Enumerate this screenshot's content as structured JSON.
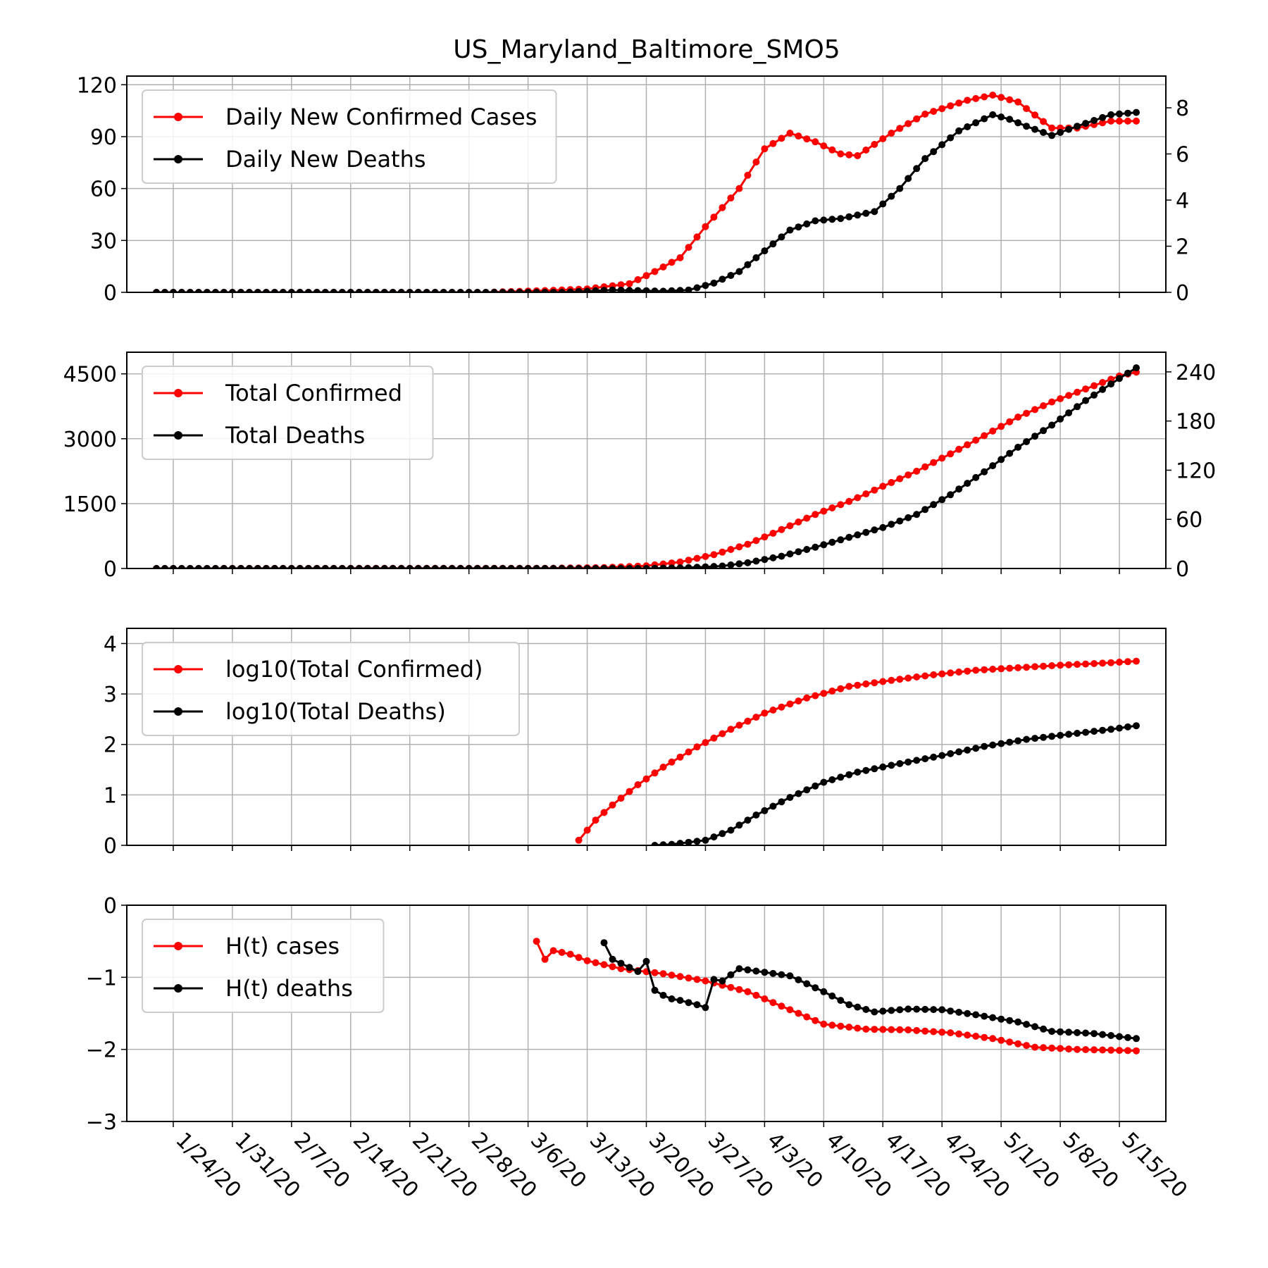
{
  "title": "US_Maryland_Baltimore_SMO5",
  "x_tick_labels": [
    "1/24/20",
    "1/31/20",
    "2/7/20",
    "2/14/20",
    "2/21/20",
    "2/28/20",
    "3/6/20",
    "3/13/20",
    "3/20/20",
    "3/27/20",
    "4/3/20",
    "4/10/20",
    "4/17/20",
    "4/24/20",
    "5/1/20",
    "5/8/20",
    "5/15/20"
  ],
  "x_tick_dates": [
    "2020-01-24",
    "2020-01-31",
    "2020-02-07",
    "2020-02-14",
    "2020-02-21",
    "2020-02-28",
    "2020-03-06",
    "2020-03-13",
    "2020-03-20",
    "2020-03-27",
    "2020-04-03",
    "2020-04-10",
    "2020-04-17",
    "2020-04-24",
    "2020-05-01",
    "2020-05-08",
    "2020-05-15"
  ],
  "colors": {
    "cases": "#ff0000",
    "deaths": "#000000",
    "grid": "#b0b0b0"
  },
  "chart_data": [
    {
      "type": "line",
      "x_start": "2020-01-22",
      "x_end": "2020-05-17",
      "ylim": [
        0,
        125
      ],
      "yticks": [
        0,
        30,
        60,
        90,
        120
      ],
      "ylim_right": [
        0,
        9.375
      ],
      "yticks_right": [
        0,
        2,
        4,
        6,
        8
      ],
      "grid": true,
      "legend_position": "top-left",
      "series": [
        {
          "name": "Daily New Confirmed Cases",
          "color": "#ff0000",
          "axis": "left",
          "points": [
            [
              "2020-01-22",
              0
            ],
            [
              "2020-03-01",
              0
            ],
            [
              "2020-03-08",
              1
            ],
            [
              "2020-03-13",
              2
            ],
            [
              "2020-03-18",
              5
            ],
            [
              "2020-03-21",
              12
            ],
            [
              "2020-03-24",
              20
            ],
            [
              "2020-03-27",
              38
            ],
            [
              "2020-03-31",
              60
            ],
            [
              "2020-04-03",
              83
            ],
            [
              "2020-04-06",
              92
            ],
            [
              "2020-04-09",
              87
            ],
            [
              "2020-04-12",
              80
            ],
            [
              "2020-04-14",
              79
            ],
            [
              "2020-04-18",
              92
            ],
            [
              "2020-04-22",
              103
            ],
            [
              "2020-04-27",
              111
            ],
            [
              "2020-04-30",
              114
            ],
            [
              "2020-05-03",
              110
            ],
            [
              "2020-05-07",
              95
            ],
            [
              "2020-05-10",
              95
            ],
            [
              "2020-05-14",
              99
            ],
            [
              "2020-05-17",
              99
            ]
          ]
        },
        {
          "name": "Daily New Deaths",
          "color": "#000000",
          "axis": "right",
          "points": [
            [
              "2020-01-22",
              0
            ],
            [
              "2020-03-10",
              0
            ],
            [
              "2020-03-16",
              0.1
            ],
            [
              "2020-03-22",
              0.05
            ],
            [
              "2020-03-25",
              0.1
            ],
            [
              "2020-03-28",
              0.4
            ],
            [
              "2020-03-31",
              0.9
            ],
            [
              "2020-04-03",
              1.8
            ],
            [
              "2020-04-06",
              2.7
            ],
            [
              "2020-04-09",
              3.1
            ],
            [
              "2020-04-12",
              3.2
            ],
            [
              "2020-04-16",
              3.5
            ],
            [
              "2020-04-19",
              4.5
            ],
            [
              "2020-04-22",
              5.8
            ],
            [
              "2020-04-26",
              7.0
            ],
            [
              "2020-04-30",
              7.7
            ],
            [
              "2020-05-02",
              7.5
            ],
            [
              "2020-05-04",
              7.2
            ],
            [
              "2020-05-07",
              6.8
            ],
            [
              "2020-05-10",
              7.2
            ],
            [
              "2020-05-14",
              7.7
            ],
            [
              "2020-05-17",
              7.8
            ]
          ]
        }
      ]
    },
    {
      "type": "line",
      "x_start": "2020-01-22",
      "x_end": "2020-05-17",
      "ylim": [
        0,
        5000
      ],
      "yticks": [
        0,
        1500,
        3000,
        4500
      ],
      "ylim_right": [
        0,
        264
      ],
      "yticks_right": [
        0,
        60,
        120,
        180,
        240
      ],
      "grid": true,
      "legend_position": "top-left",
      "series": [
        {
          "name": "Total Confirmed",
          "color": "#ff0000",
          "axis": "left",
          "points": [
            [
              "2020-01-22",
              0
            ],
            [
              "2020-03-08",
              5
            ],
            [
              "2020-03-15",
              20
            ],
            [
              "2020-03-20",
              60
            ],
            [
              "2020-03-24",
              150
            ],
            [
              "2020-03-28",
              320
            ],
            [
              "2020-04-01",
              560
            ],
            [
              "2020-04-05",
              900
            ],
            [
              "2020-04-09",
              1250
            ],
            [
              "2020-04-13",
              1550
            ],
            [
              "2020-04-17",
              1900
            ],
            [
              "2020-04-21",
              2250
            ],
            [
              "2020-04-25",
              2650
            ],
            [
              "2020-04-29",
              3070
            ],
            [
              "2020-05-03",
              3500
            ],
            [
              "2020-05-07",
              3850
            ],
            [
              "2020-05-11",
              4150
            ],
            [
              "2020-05-15",
              4450
            ],
            [
              "2020-05-17",
              4540
            ]
          ]
        },
        {
          "name": "Total Deaths",
          "color": "#000000",
          "axis": "right",
          "points": [
            [
              "2020-01-22",
              0
            ],
            [
              "2020-03-20",
              0
            ],
            [
              "2020-03-25",
              1
            ],
            [
              "2020-03-29",
              3
            ],
            [
              "2020-04-01",
              7
            ],
            [
              "2020-04-05",
              15
            ],
            [
              "2020-04-09",
              26
            ],
            [
              "2020-04-13",
              38
            ],
            [
              "2020-04-17",
              50
            ],
            [
              "2020-04-21",
              66
            ],
            [
              "2020-04-25",
              90
            ],
            [
              "2020-04-29",
              118
            ],
            [
              "2020-05-03",
              148
            ],
            [
              "2020-05-07",
              175
            ],
            [
              "2020-05-11",
              205
            ],
            [
              "2020-05-15",
              232
            ],
            [
              "2020-05-17",
              245
            ]
          ]
        }
      ]
    },
    {
      "type": "line",
      "x_start": "2020-01-22",
      "x_end": "2020-05-17",
      "ylim": [
        0,
        4.3
      ],
      "yticks": [
        0,
        1,
        2,
        3,
        4
      ],
      "grid": true,
      "legend_position": "top-left",
      "series": [
        {
          "name": "log10(Total Confirmed)",
          "color": "#ff0000",
          "axis": "left",
          "points": [
            [
              "2020-03-12",
              0.1
            ],
            [
              "2020-03-14",
              0.5
            ],
            [
              "2020-03-16",
              0.8
            ],
            [
              "2020-03-19",
              1.2
            ],
            [
              "2020-03-22",
              1.55
            ],
            [
              "2020-03-26",
              1.95
            ],
            [
              "2020-03-30",
              2.3
            ],
            [
              "2020-04-03",
              2.62
            ],
            [
              "2020-04-08",
              2.92
            ],
            [
              "2020-04-13",
              3.15
            ],
            [
              "2020-04-18",
              3.27
            ],
            [
              "2020-04-23",
              3.38
            ],
            [
              "2020-04-28",
              3.47
            ],
            [
              "2020-05-03",
              3.52
            ],
            [
              "2020-05-08",
              3.57
            ],
            [
              "2020-05-13",
              3.61
            ],
            [
              "2020-05-17",
              3.65
            ]
          ]
        },
        {
          "name": "log10(Total Deaths)",
          "color": "#000000",
          "axis": "left",
          "points": [
            [
              "2020-03-21",
              0
            ],
            [
              "2020-03-23",
              0.02
            ],
            [
              "2020-03-27",
              0.1
            ],
            [
              "2020-03-30",
              0.3
            ],
            [
              "2020-04-02",
              0.6
            ],
            [
              "2020-04-06",
              0.95
            ],
            [
              "2020-04-10",
              1.25
            ],
            [
              "2020-04-14",
              1.45
            ],
            [
              "2020-04-19",
              1.62
            ],
            [
              "2020-04-24",
              1.78
            ],
            [
              "2020-04-29",
              1.96
            ],
            [
              "2020-05-04",
              2.1
            ],
            [
              "2020-05-09",
              2.2
            ],
            [
              "2020-05-14",
              2.3
            ],
            [
              "2020-05-17",
              2.37
            ]
          ]
        }
      ]
    },
    {
      "type": "line",
      "x_start": "2020-01-22",
      "x_end": "2020-05-17",
      "ylim": [
        -3,
        0
      ],
      "yticks": [
        0,
        -1,
        -2,
        -3
      ],
      "ytick_labels": [
        "0",
        "−1",
        "−2",
        "−3"
      ],
      "grid": true,
      "legend_position": "top-left",
      "series": [
        {
          "name": "H(t) cases",
          "color": "#ff0000",
          "axis": "left",
          "points": [
            [
              "2020-03-07",
              -0.5
            ],
            [
              "2020-03-08",
              -0.75
            ],
            [
              "2020-03-09",
              -0.63
            ],
            [
              "2020-03-11",
              -0.68
            ],
            [
              "2020-03-13",
              -0.77
            ],
            [
              "2020-03-17",
              -0.88
            ],
            [
              "2020-03-22",
              -0.95
            ],
            [
              "2020-03-27",
              -1.05
            ],
            [
              "2020-04-01",
              -1.2
            ],
            [
              "2020-04-05",
              -1.4
            ],
            [
              "2020-04-10",
              -1.65
            ],
            [
              "2020-04-15",
              -1.72
            ],
            [
              "2020-04-20",
              -1.73
            ],
            [
              "2020-04-25",
              -1.77
            ],
            [
              "2020-04-30",
              -1.85
            ],
            [
              "2020-05-05",
              -1.97
            ],
            [
              "2020-05-10",
              -2.0
            ],
            [
              "2020-05-17",
              -2.02
            ]
          ]
        },
        {
          "name": "H(t) deaths",
          "color": "#000000",
          "axis": "left",
          "points": [
            [
              "2020-03-15",
              -0.52
            ],
            [
              "2020-03-16",
              -0.75
            ],
            [
              "2020-03-19",
              -0.92
            ],
            [
              "2020-03-20",
              -0.78
            ],
            [
              "2020-03-21",
              -1.18
            ],
            [
              "2020-03-22",
              -1.25
            ],
            [
              "2020-03-23",
              -1.3
            ],
            [
              "2020-03-24",
              -1.32
            ],
            [
              "2020-03-26",
              -1.38
            ],
            [
              "2020-03-27",
              -1.42
            ],
            [
              "2020-03-28",
              -1.03
            ],
            [
              "2020-03-29",
              -1.05
            ],
            [
              "2020-03-31",
              -0.88
            ],
            [
              "2020-04-03",
              -0.93
            ],
            [
              "2020-04-06",
              -0.98
            ],
            [
              "2020-04-10",
              -1.2
            ],
            [
              "2020-04-13",
              -1.38
            ],
            [
              "2020-04-16",
              -1.48
            ],
            [
              "2020-04-20",
              -1.44
            ],
            [
              "2020-04-24",
              -1.45
            ],
            [
              "2020-04-28",
              -1.52
            ],
            [
              "2020-05-03",
              -1.62
            ],
            [
              "2020-05-07",
              -1.75
            ],
            [
              "2020-05-12",
              -1.78
            ],
            [
              "2020-05-17",
              -1.85
            ]
          ]
        }
      ]
    }
  ]
}
